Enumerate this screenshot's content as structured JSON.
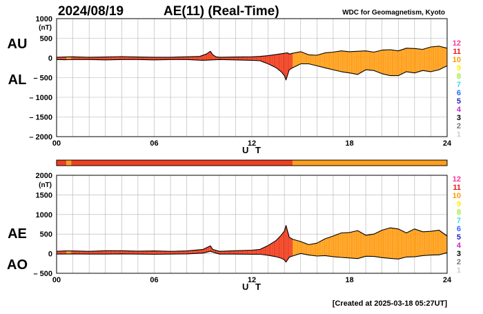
{
  "header": {
    "date": "2024/08/19",
    "title": "AE(11) (Real-Time)",
    "source": "WDC for Geomagnetism, Kyoto"
  },
  "footer": {
    "created": "[Created at 2025-03-18 05:27UT]"
  },
  "colors": {
    "scale": {
      "12": "#ff3399",
      "11": "#ee1111",
      "10": "#ff9900",
      "9": "#ffee00",
      "8": "#99ee33",
      "7": "#33dddd",
      "6": "#2266ff",
      "5": "#2222bb",
      "4": "#cc22cc",
      "3": "#000000",
      "2": "#777777",
      "1": "#cccccc"
    },
    "disturbed": "#f04020",
    "moderate": "#ff9f1a"
  },
  "chart_data": [
    {
      "type": "area",
      "panel": "top",
      "series_labels": [
        "AU",
        "AL"
      ],
      "unit_label": "(nT)",
      "xlabel": "U T",
      "xlim": [
        0,
        24
      ],
      "xticks": [
        "00",
        "06",
        "12",
        "18",
        "24"
      ],
      "ylim": [
        -2000,
        1000
      ],
      "yticks": [
        "1000",
        "500",
        "0",
        "– 500",
        "– 1000",
        "– 1500",
        "– 2000"
      ],
      "scale_labels": [
        "12",
        "11",
        "10",
        "9",
        "8",
        "7",
        "6",
        "5",
        "4",
        "3",
        "2",
        "1"
      ],
      "series": [
        {
          "name": "AU",
          "x": [
            0,
            0.5,
            1,
            2,
            3,
            4,
            5,
            6,
            7,
            8,
            8.8,
            9.2,
            9.45,
            9.6,
            9.8,
            10,
            11,
            12,
            12.5,
            13,
            13.5,
            14,
            14.2,
            14.3,
            14.5,
            15,
            15.5,
            16,
            16.5,
            17,
            17.5,
            18,
            18.5,
            19,
            19.5,
            20,
            20.5,
            21,
            21.5,
            22,
            22.5,
            23,
            23.5,
            24
          ],
          "y": [
            20,
            25,
            30,
            20,
            25,
            35,
            25,
            20,
            20,
            30,
            40,
            100,
            170,
            80,
            30,
            20,
            25,
            30,
            40,
            60,
            90,
            120,
            130,
            100,
            120,
            160,
            80,
            70,
            130,
            150,
            180,
            160,
            170,
            180,
            150,
            200,
            210,
            180,
            250,
            240,
            220,
            280,
            300,
            250
          ]
        },
        {
          "name": "AL",
          "x": [
            0,
            0.5,
            1,
            2,
            3,
            4,
            5,
            6,
            7,
            8,
            9,
            10,
            11,
            12,
            12.5,
            13,
            13.5,
            13.8,
            14,
            14.1,
            14.3,
            14.5,
            15,
            15.5,
            16,
            16.5,
            17,
            17.5,
            18,
            18.5,
            19,
            19.5,
            20,
            20.5,
            21,
            21.5,
            22,
            22.5,
            23,
            23.5,
            24
          ],
          "y": [
            -40,
            -45,
            -40,
            -40,
            -50,
            -40,
            -40,
            -50,
            -40,
            -40,
            -60,
            -40,
            -50,
            -60,
            -70,
            -150,
            -250,
            -350,
            -450,
            -560,
            -300,
            -250,
            -150,
            -150,
            -200,
            -250,
            -300,
            -350,
            -380,
            -420,
            -300,
            -320,
            -400,
            -450,
            -450,
            -350,
            -380,
            -320,
            -350,
            -300,
            -200
          ]
        }
      ]
    },
    {
      "type": "area",
      "panel": "bottom",
      "series_labels": [
        "AE",
        "AO"
      ],
      "unit_label": "(nT)",
      "xlabel": "U T",
      "xlim": [
        0,
        24
      ],
      "xticks": [
        "00",
        "06",
        "12",
        "18",
        "24"
      ],
      "ylim": [
        -500,
        2000
      ],
      "yticks": [
        "2000",
        "1500",
        "1000",
        "500",
        "0",
        "– 500"
      ],
      "scale_labels": [
        "12",
        "11",
        "10",
        "9",
        "8",
        "7",
        "6",
        "5",
        "4",
        "3",
        "2",
        "1"
      ],
      "series": [
        {
          "name": "AE",
          "x": [
            0,
            0.5,
            1,
            2,
            3,
            4,
            5,
            6,
            7,
            8,
            9,
            9.45,
            9.6,
            10,
            11,
            12,
            12.5,
            13,
            13.5,
            13.8,
            14,
            14.1,
            14.3,
            14.5,
            15,
            15.5,
            16,
            16.5,
            17,
            17.5,
            18,
            18.5,
            19,
            19.5,
            20,
            20.5,
            21,
            21.5,
            22,
            22.5,
            23,
            23.5,
            24
          ],
          "y": [
            60,
            70,
            70,
            60,
            75,
            75,
            65,
            70,
            60,
            70,
            110,
            200,
            110,
            60,
            75,
            90,
            110,
            210,
            340,
            470,
            580,
            720,
            420,
            370,
            310,
            230,
            270,
            380,
            450,
            530,
            540,
            590,
            470,
            500,
            600,
            660,
            630,
            530,
            630,
            560,
            570,
            600,
            450
          ]
        },
        {
          "name": "AO",
          "x": [
            0,
            1,
            2,
            3,
            4,
            5,
            6,
            7,
            8,
            9,
            9.45,
            10,
            11,
            12,
            12.5,
            13,
            13.5,
            13.8,
            14,
            14.1,
            14.3,
            14.5,
            15,
            15.5,
            16,
            16.5,
            17,
            17.5,
            18,
            18.5,
            19,
            19.5,
            20,
            20.5,
            21,
            21.5,
            22,
            22.5,
            23,
            23.5,
            24
          ],
          "y": [
            -10,
            -5,
            -10,
            -10,
            -5,
            -10,
            -15,
            -10,
            -5,
            15,
            60,
            -10,
            -10,
            -15,
            -15,
            -40,
            -80,
            -115,
            -160,
            -215,
            -90,
            -60,
            5,
            -35,
            -60,
            -50,
            -75,
            -95,
            -110,
            -125,
            -65,
            -70,
            -100,
            -120,
            -135,
            -85,
            -80,
            -50,
            -35,
            -30,
            25
          ]
        }
      ]
    }
  ],
  "kp_bar": {
    "segments": [
      {
        "from": 0,
        "to": 0.6,
        "color": "#f04020"
      },
      {
        "from": 0.6,
        "to": 0.9,
        "color": "#ff9f1a"
      },
      {
        "from": 0.9,
        "to": 14.5,
        "color": "#f04020"
      },
      {
        "from": 14.5,
        "to": 24,
        "color": "#ff9f1a"
      }
    ]
  }
}
